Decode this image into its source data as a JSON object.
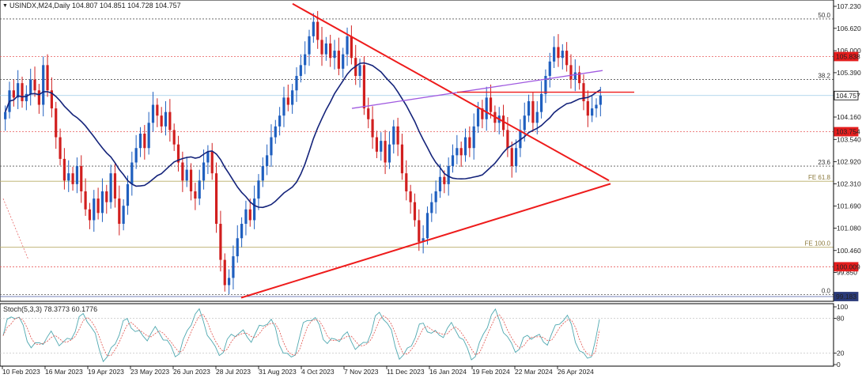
{
  "header": {
    "arrow": "▼",
    "title": "USINDX,M24,Daily  104.807 104.851 104.728 104.757"
  },
  "stoch_title": "Stoch(5,3,3) 78.3773 60.1776",
  "colors": {
    "bull": "#1f5fbf",
    "bear": "#d11f1f",
    "ma": "#14237a",
    "trend": "#ee1b1b",
    "purple": "#a05ae0",
    "fib_red": "#e85a5a",
    "fib_gray": "#555555",
    "fe_olive": "#b8ac66",
    "stoch_main": "#4fa8b0",
    "stoch_signal": "#e0504a",
    "tag_red": "#e41d1d",
    "tag_navy": "#2a3a7a"
  },
  "chart_data": {
    "type": "candlestick",
    "symbol": "USINDX,M24",
    "timeframe": "Daily",
    "ohlc_last": {
      "open": 104.807,
      "high": 104.851,
      "low": 104.728,
      "close": 104.757
    },
    "price_axis": {
      "range": [
        99.183,
        107.23
      ],
      "ticks": [
        "107.230",
        "106.620",
        "106.000",
        "105.390",
        "104.160",
        "103.540",
        "102.920",
        "102.310",
        "101.690",
        "101.080",
        "100.460",
        "99.850"
      ]
    },
    "x_ticks": [
      "10 Feb 2023",
      "16 Mar 2023",
      "19 Apr 2023",
      "23 May 2023",
      "26 Jun 2023",
      "28 Jul 2023",
      "31 Aug 2023",
      "4 Oct 2023",
      "7 Nov 2023",
      "11 Dec 2023",
      "16 Jan 2024",
      "19 Feb 2024",
      "22 Mar 2024",
      "26 Apr 2024"
    ],
    "price_tags": [
      {
        "label": "105.838",
        "value": 105.838,
        "color": "red"
      },
      {
        "label": "104.757",
        "value": 104.757,
        "color": "white"
      },
      {
        "label": "103.754",
        "value": 103.754,
        "color": "red"
      },
      {
        "label": "100.009",
        "value": 100.009,
        "color": "red"
      },
      {
        "label": "99.183",
        "value": 99.183,
        "color": "navy"
      }
    ],
    "fib_levels": [
      {
        "label": "50.0",
        "value": 106.88
      },
      {
        "label": "38.2",
        "value": 105.2
      },
      {
        "label": "23.6",
        "value": 102.8
      },
      {
        "label": "0.0",
        "value": 99.24
      }
    ],
    "fe_levels": [
      {
        "label": "FE 61.8",
        "value": 102.38
      },
      {
        "label": "FE 100.0",
        "value": 100.55
      }
    ],
    "red_levels": [
      105.838,
      103.754,
      100.009
    ],
    "resistance_line": 104.85,
    "series_close": [
      104.3,
      104.9,
      104.7,
      105.1,
      104.6,
      104.8,
      105.2,
      104.9,
      104.5,
      105.6,
      104.9,
      104.4,
      103.6,
      103.0,
      102.4,
      102.6,
      102.3,
      102.8,
      102.1,
      101.6,
      101.3,
      101.9,
      101.5,
      102.1,
      101.8,
      102.6,
      101.9,
      101.2,
      101.7,
      102.3,
      102.9,
      103.3,
      103.7,
      103.3,
      104.0,
      104.5,
      104.2,
      103.9,
      104.3,
      103.8,
      103.4,
      102.9,
      102.4,
      102.7,
      102.1,
      101.9,
      102.4,
      102.9,
      103.2,
      102.6,
      101.2,
      100.2,
      99.5,
      99.7,
      100.3,
      100.8,
      101.2,
      101.6,
      101.3,
      101.9,
      102.4,
      102.8,
      103.1,
      103.6,
      103.9,
      104.2,
      104.7,
      104.5,
      104.9,
      105.3,
      105.6,
      105.9,
      106.4,
      106.8,
      106.3,
      105.9,
      106.2,
      105.8,
      106.0,
      105.5,
      105.9,
      106.4,
      105.8,
      105.3,
      105.6,
      104.4,
      104.1,
      103.6,
      103.2,
      103.5,
      102.9,
      103.4,
      103.9,
      103.4,
      102.6,
      102.1,
      101.8,
      101.3,
      100.7,
      100.8,
      101.5,
      101.8,
      102.1,
      102.5,
      102.3,
      102.8,
      103.1,
      103.3,
      103.1,
      103.6,
      103.3,
      103.9,
      104.4,
      104.1,
      104.7,
      104.3,
      104.0,
      104.2,
      103.8,
      103.3,
      102.8,
      103.3,
      103.8,
      104.2,
      104.6,
      104.0,
      104.3,
      104.8,
      105.3,
      105.7,
      106.1,
      105.8,
      106.0,
      105.6,
      105.2,
      105.4,
      105.1,
      104.6,
      104.2,
      104.4,
      104.5,
      104.757
    ],
    "stoch_y_ticks": [
      "100",
      "80",
      "20",
      "0"
    ],
    "stoch": {
      "k": 78.3773,
      "d": 60.1776
    }
  }
}
